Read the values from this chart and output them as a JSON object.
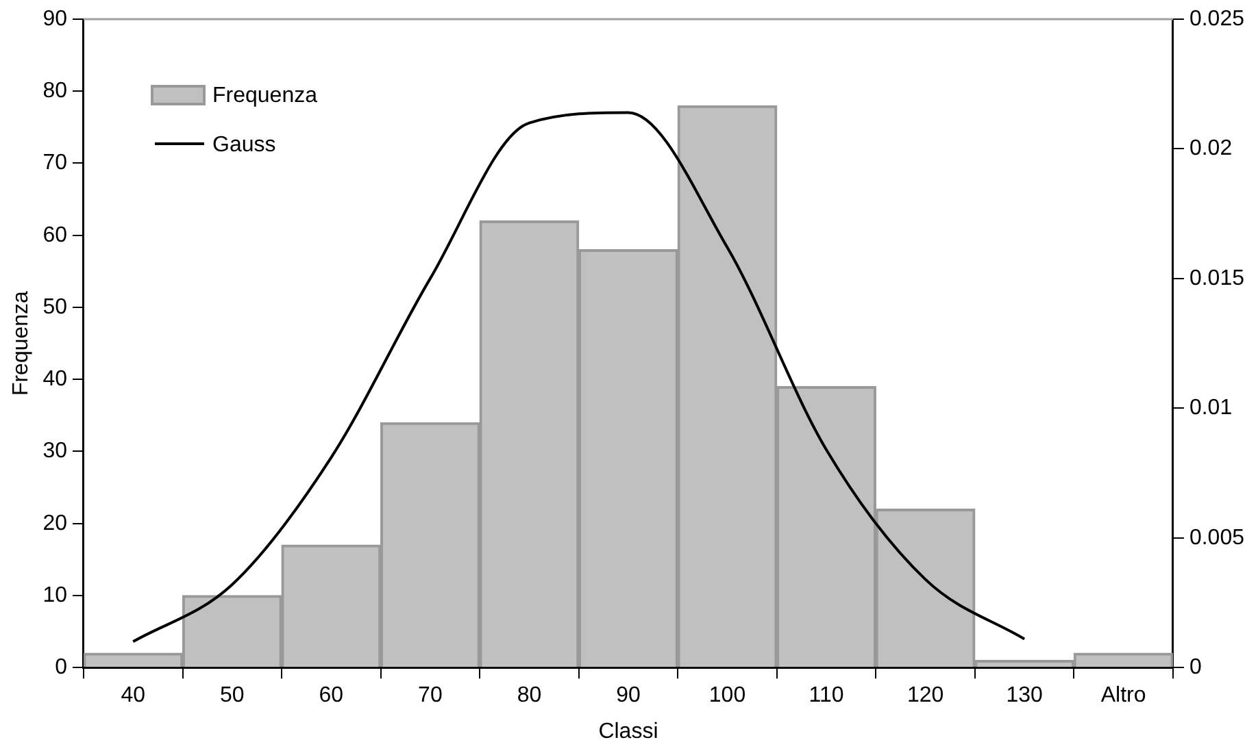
{
  "chart_data": {
    "type": "bar",
    "xlabel": "Classi",
    "ylabel": "Frequenza",
    "categories": [
      "40",
      "50",
      "60",
      "70",
      "80",
      "90",
      "100",
      "110",
      "120",
      "130",
      "Altro"
    ],
    "series": [
      {
        "name": "Frequenza",
        "color": "#c0c0c0",
        "values": [
          2,
          10,
          17,
          34,
          62,
          58,
          78,
          39,
          22,
          1,
          2
        ]
      },
      {
        "name": "Gauss",
        "type": "line",
        "axis": "y2",
        "color": "#000000",
        "marker": "none",
        "values": [
          0.001,
          0.0032,
          0.0081,
          0.015,
          0.021,
          0.0214,
          0.0162,
          0.0084,
          0.0034,
          0.0011,
          null
        ]
      }
    ],
    "ylim": [
      0,
      90
    ],
    "yticks": [
      0,
      10,
      20,
      30,
      40,
      50,
      60,
      70,
      80,
      90
    ],
    "y2lim": [
      0,
      0.025
    ],
    "y2ticks": [
      0,
      0.005,
      0.01,
      0.015,
      0.02,
      0.025
    ],
    "grid": false,
    "legend": "top left"
  }
}
